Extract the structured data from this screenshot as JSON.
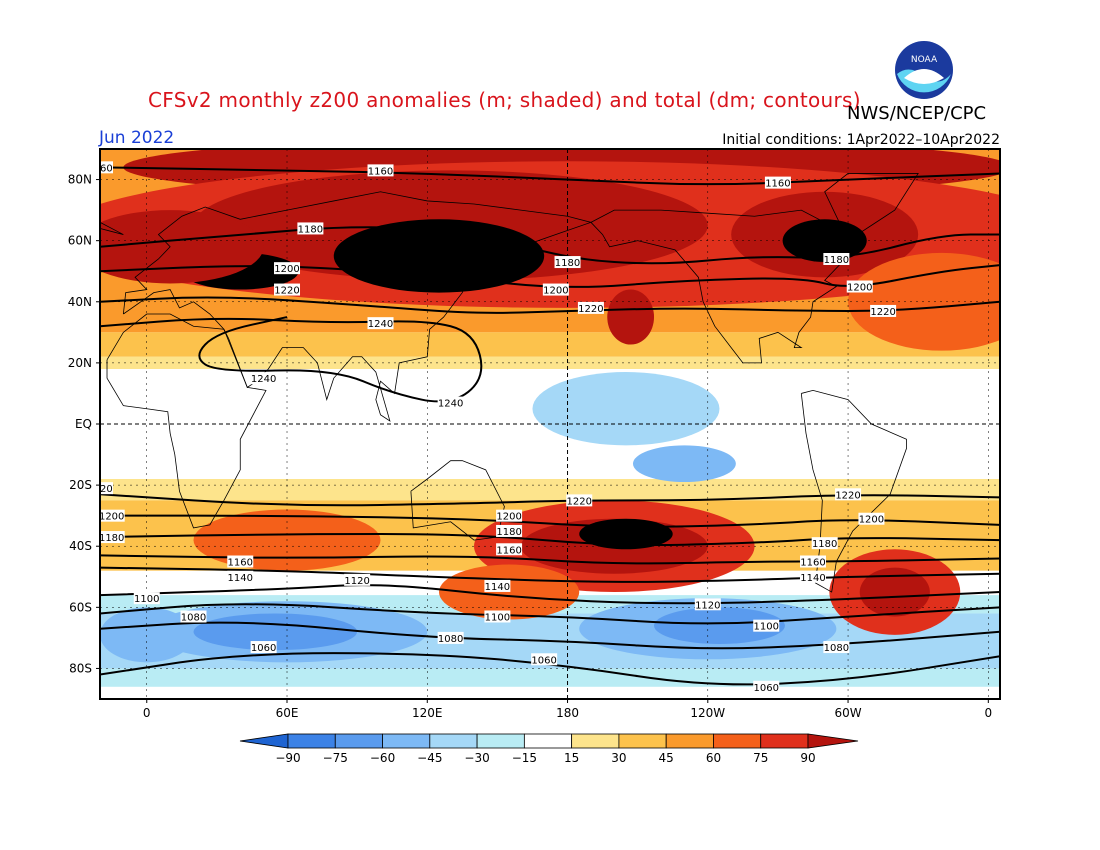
{
  "header": {
    "title": "CFSv2 monthly z200 anomalies (m; shaded) and total (dm; contours)",
    "organization": "NWS/NCEP/CPC",
    "logo_text": "NOAA",
    "month": "Jun 2022",
    "initial_conditions": "Initial conditions: 1Apr2022–10Apr2022"
  },
  "axes": {
    "lat_labels": [
      {
        "lat": 80,
        "label": "80N"
      },
      {
        "lat": 60,
        "label": "60N"
      },
      {
        "lat": 40,
        "label": "40N"
      },
      {
        "lat": 20,
        "label": "20N"
      },
      {
        "lat": 0,
        "label": "EQ"
      },
      {
        "lat": -20,
        "label": "20S"
      },
      {
        "lat": -40,
        "label": "40S"
      },
      {
        "lat": -60,
        "label": "60S"
      },
      {
        "lat": -80,
        "label": "80S"
      }
    ],
    "lon_labels": [
      {
        "lon": 0,
        "label": "0"
      },
      {
        "lon": 60,
        "label": "60E"
      },
      {
        "lon": 120,
        "label": "120E"
      },
      {
        "lon": 180,
        "label": "180"
      },
      {
        "lon": 240,
        "label": "120W"
      },
      {
        "lon": 300,
        "label": "60W"
      },
      {
        "lon": 360,
        "label": "0"
      }
    ],
    "lon_range": [
      -20,
      365
    ],
    "lat_range": [
      -90,
      90
    ]
  },
  "colorbar": {
    "levels": [
      "-90",
      "-75",
      "-60",
      "-45",
      "-30",
      "-15",
      "15",
      "30",
      "45",
      "60",
      "75",
      "90"
    ],
    "colors": [
      "#1e64d2",
      "#3c82e6",
      "#5a9bee",
      "#7db9f5",
      "#a5d8f7",
      "#b9ecf4",
      "#ffffff",
      "#fde48c",
      "#fcc24c",
      "#fa9a2c",
      "#f4601a",
      "#e0301c",
      "#b4140e"
    ]
  },
  "anomaly_blobs": [
    {
      "lon": 180,
      "lat": 84,
      "rlon": 190,
      "rlat": 10,
      "level": 4
    },
    {
      "lon": 180,
      "lat": 62,
      "rlon": 220,
      "rlat": 24,
      "level": 3
    },
    {
      "lon": 130,
      "lat": 65,
      "rlon": 110,
      "rlat": 18,
      "level": 4
    },
    {
      "lon": 125,
      "lat": 55,
      "rlon": 45,
      "rlat": 12,
      "level": 5
    },
    {
      "lon": 40,
      "lat": 50,
      "rlon": 25,
      "rlat": 6,
      "level": 5
    },
    {
      "lon": 10,
      "lat": 58,
      "rlon": 40,
      "rlat": 12,
      "level": 4
    },
    {
      "lon": 290,
      "lat": 62,
      "rlon": 40,
      "rlat": 14,
      "level": 4
    },
    {
      "lon": 290,
      "lat": 60,
      "rlon": 18,
      "rlat": 7,
      "level": 5
    },
    {
      "lon": 207,
      "lat": 35,
      "rlon": 10,
      "rlat": 9,
      "level": 4
    },
    {
      "lon": 340,
      "lat": 40,
      "rlon": 40,
      "rlat": 16,
      "level": 2
    },
    {
      "lon": 200,
      "lat": -40,
      "rlon": 60,
      "rlat": 15,
      "level": 3
    },
    {
      "lon": 200,
      "lat": -40,
      "rlon": 40,
      "rlat": 9,
      "level": 4
    },
    {
      "lon": 205,
      "lat": -36,
      "rlon": 20,
      "rlat": 5,
      "level": 5
    },
    {
      "lon": 60,
      "lat": -38,
      "rlon": 40,
      "rlat": 10,
      "level": 2
    },
    {
      "lon": 320,
      "lat": -55,
      "rlon": 28,
      "rlat": 14,
      "level": 3
    },
    {
      "lon": 320,
      "lat": -55,
      "rlon": 15,
      "rlat": 8,
      "level": 4
    },
    {
      "lon": 155,
      "lat": -55,
      "rlon": 30,
      "rlat": 9,
      "level": 2
    }
  ],
  "negative_blobs": [
    {
      "lon": 205,
      "lat": 5,
      "rlon": 40,
      "rlat": 12,
      "level": 1
    },
    {
      "lon": 230,
      "lat": -13,
      "rlon": 22,
      "rlat": 6,
      "level": 2
    },
    {
      "lon": 240,
      "lat": -67,
      "rlon": 55,
      "rlat": 10,
      "level": 2
    },
    {
      "lon": 245,
      "lat": -66,
      "rlon": 28,
      "rlat": 6,
      "level": 3
    },
    {
      "lon": 60,
      "lat": -68,
      "rlon": 60,
      "rlat": 10,
      "level": 2
    },
    {
      "lon": 55,
      "lat": -68,
      "rlon": 35,
      "rlat": 6,
      "level": 3
    },
    {
      "lon": 0,
      "lat": -69,
      "rlon": 20,
      "rlat": 9,
      "level": 2
    }
  ],
  "contours": [
    {
      "label": "1160",
      "pts": [
        [
          -20,
          84
        ],
        [
          60,
          83
        ],
        [
          120,
          82
        ],
        [
          180,
          80
        ],
        [
          240,
          78
        ],
        [
          300,
          80
        ],
        [
          365,
          82
        ]
      ],
      "tags": [
        [
          -20,
          84
        ],
        [
          100,
          83
        ],
        [
          270,
          79
        ]
      ]
    },
    {
      "label": "1180",
      "pts": [
        [
          -20,
          58
        ],
        [
          40,
          62
        ],
        [
          90,
          65
        ],
        [
          140,
          63
        ],
        [
          180,
          54
        ],
        [
          220,
          52
        ],
        [
          260,
          55
        ],
        [
          300,
          54
        ],
        [
          340,
          62
        ],
        [
          365,
          62
        ]
      ],
      "tags": [
        [
          70,
          64
        ],
        [
          180,
          53
        ],
        [
          295,
          54
        ]
      ]
    },
    {
      "label": "1200",
      "pts": [
        [
          -20,
          50
        ],
        [
          40,
          52
        ],
        [
          80,
          51
        ],
        [
          130,
          48
        ],
        [
          180,
          44
        ],
        [
          230,
          47
        ],
        [
          280,
          48
        ],
        [
          300,
          44
        ],
        [
          340,
          50
        ],
        [
          365,
          52
        ]
      ],
      "tags": [
        [
          60,
          51
        ],
        [
          175,
          44
        ],
        [
          305,
          45
        ]
      ]
    },
    {
      "label": "1220",
      "pts": [
        [
          -20,
          40
        ],
        [
          30,
          42
        ],
        [
          90,
          39
        ],
        [
          140,
          36
        ],
        [
          180,
          37
        ],
        [
          230,
          38
        ],
        [
          280,
          37
        ],
        [
          320,
          37
        ],
        [
          365,
          40
        ]
      ],
      "tags": [
        [
          60,
          44
        ],
        [
          190,
          38
        ],
        [
          315,
          37
        ]
      ]
    },
    {
      "label": "1240",
      "pts": [
        [
          -20,
          32
        ],
        [
          30,
          35
        ],
        [
          80,
          33
        ],
        [
          120,
          34
        ],
        [
          140,
          30
        ],
        [
          145,
          15
        ],
        [
          130,
          6
        ],
        [
          105,
          10
        ],
        [
          80,
          18
        ],
        [
          30,
          17
        ],
        [
          20,
          22
        ],
        [
          30,
          30
        ],
        [
          60,
          35
        ]
      ],
      "tags": [
        [
          100,
          33
        ],
        [
          50,
          15
        ],
        [
          130,
          7
        ]
      ]
    },
    {
      "label": "1220",
      "pts": [
        [
          -20,
          -23
        ],
        [
          60,
          -27
        ],
        [
          140,
          -26
        ],
        [
          180,
          -25
        ],
        [
          240,
          -25
        ],
        [
          300,
          -23
        ],
        [
          365,
          -24
        ]
      ],
      "tags": [
        [
          -20,
          -21
        ],
        [
          185,
          -25
        ],
        [
          300,
          -23
        ]
      ]
    },
    {
      "label": "1200",
      "pts": [
        [
          -20,
          -30
        ],
        [
          60,
          -30
        ],
        [
          140,
          -31
        ],
        [
          200,
          -34
        ],
        [
          260,
          -33
        ],
        [
          300,
          -31
        ],
        [
          365,
          -33
        ]
      ],
      "tags": [
        [
          -15,
          -30
        ],
        [
          155,
          -30
        ],
        [
          310,
          -31
        ]
      ]
    },
    {
      "label": "1180",
      "pts": [
        [
          -20,
          -37
        ],
        [
          60,
          -36
        ],
        [
          140,
          -36
        ],
        [
          200,
          -40
        ],
        [
          260,
          -39
        ],
        [
          300,
          -37
        ],
        [
          365,
          -38
        ]
      ],
      "tags": [
        [
          -15,
          -37
        ],
        [
          155,
          -35
        ],
        [
          290,
          -39
        ]
      ]
    },
    {
      "label": "1160",
      "pts": [
        [
          -20,
          -43
        ],
        [
          60,
          -44
        ],
        [
          140,
          -43
        ],
        [
          200,
          -46
        ],
        [
          260,
          -45
        ],
        [
          300,
          -45
        ],
        [
          365,
          -44
        ]
      ],
      "tags": [
        [
          40,
          -45
        ],
        [
          155,
          -41
        ],
        [
          285,
          -45
        ]
      ]
    },
    {
      "label": "1140",
      "pts": [
        [
          -20,
          -47
        ],
        [
          60,
          -48
        ],
        [
          120,
          -50
        ],
        [
          200,
          -52
        ],
        [
          260,
          -51
        ],
        [
          300,
          -50
        ],
        [
          365,
          -49
        ]
      ],
      "tags": [
        [
          40,
          -50
        ],
        [
          150,
          -53
        ],
        [
          285,
          -50
        ]
      ]
    },
    {
      "label": "1120",
      "pts": [
        [
          -20,
          -56
        ],
        [
          60,
          -54
        ],
        [
          100,
          -52
        ],
        [
          160,
          -57
        ],
        [
          220,
          -59
        ],
        [
          280,
          -58
        ],
        [
          365,
          -55
        ]
      ],
      "tags": [
        [
          90,
          -51
        ],
        [
          240,
          -59
        ]
      ]
    },
    {
      "label": "1100",
      "pts": [
        [
          -20,
          -62
        ],
        [
          40,
          -58
        ],
        [
          120,
          -62
        ],
        [
          180,
          -63
        ],
        [
          240,
          -66
        ],
        [
          300,
          -63
        ],
        [
          365,
          -60
        ]
      ],
      "tags": [
        [
          0,
          -57
        ],
        [
          150,
          -63
        ],
        [
          265,
          -66
        ]
      ]
    },
    {
      "label": "1080",
      "pts": [
        [
          -20,
          -67
        ],
        [
          40,
          -64
        ],
        [
          120,
          -70
        ],
        [
          180,
          -71
        ],
        [
          240,
          -74
        ],
        [
          300,
          -72
        ],
        [
          365,
          -68
        ]
      ],
      "tags": [
        [
          20,
          -63
        ],
        [
          130,
          -70
        ],
        [
          295,
          -73
        ]
      ]
    },
    {
      "label": "1060",
      "pts": [
        [
          -20,
          -82
        ],
        [
          40,
          -75
        ],
        [
          120,
          -75
        ],
        [
          180,
          -79
        ],
        [
          240,
          -86
        ],
        [
          300,
          -84
        ],
        [
          365,
          -76
        ]
      ],
      "tags": [
        [
          50,
          -73
        ],
        [
          170,
          -77
        ],
        [
          265,
          -86
        ]
      ]
    }
  ]
}
